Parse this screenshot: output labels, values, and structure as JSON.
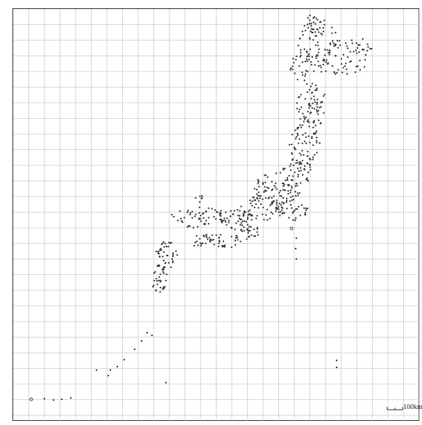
{
  "map": {
    "scale_label": "100km",
    "colors": {
      "background": "#ffffff",
      "grid": "#c8c8c8",
      "frame": "#222222",
      "points": "#333333"
    },
    "points_icon": "dot-icon",
    "island_outline_icon": "circle-icon"
  }
}
